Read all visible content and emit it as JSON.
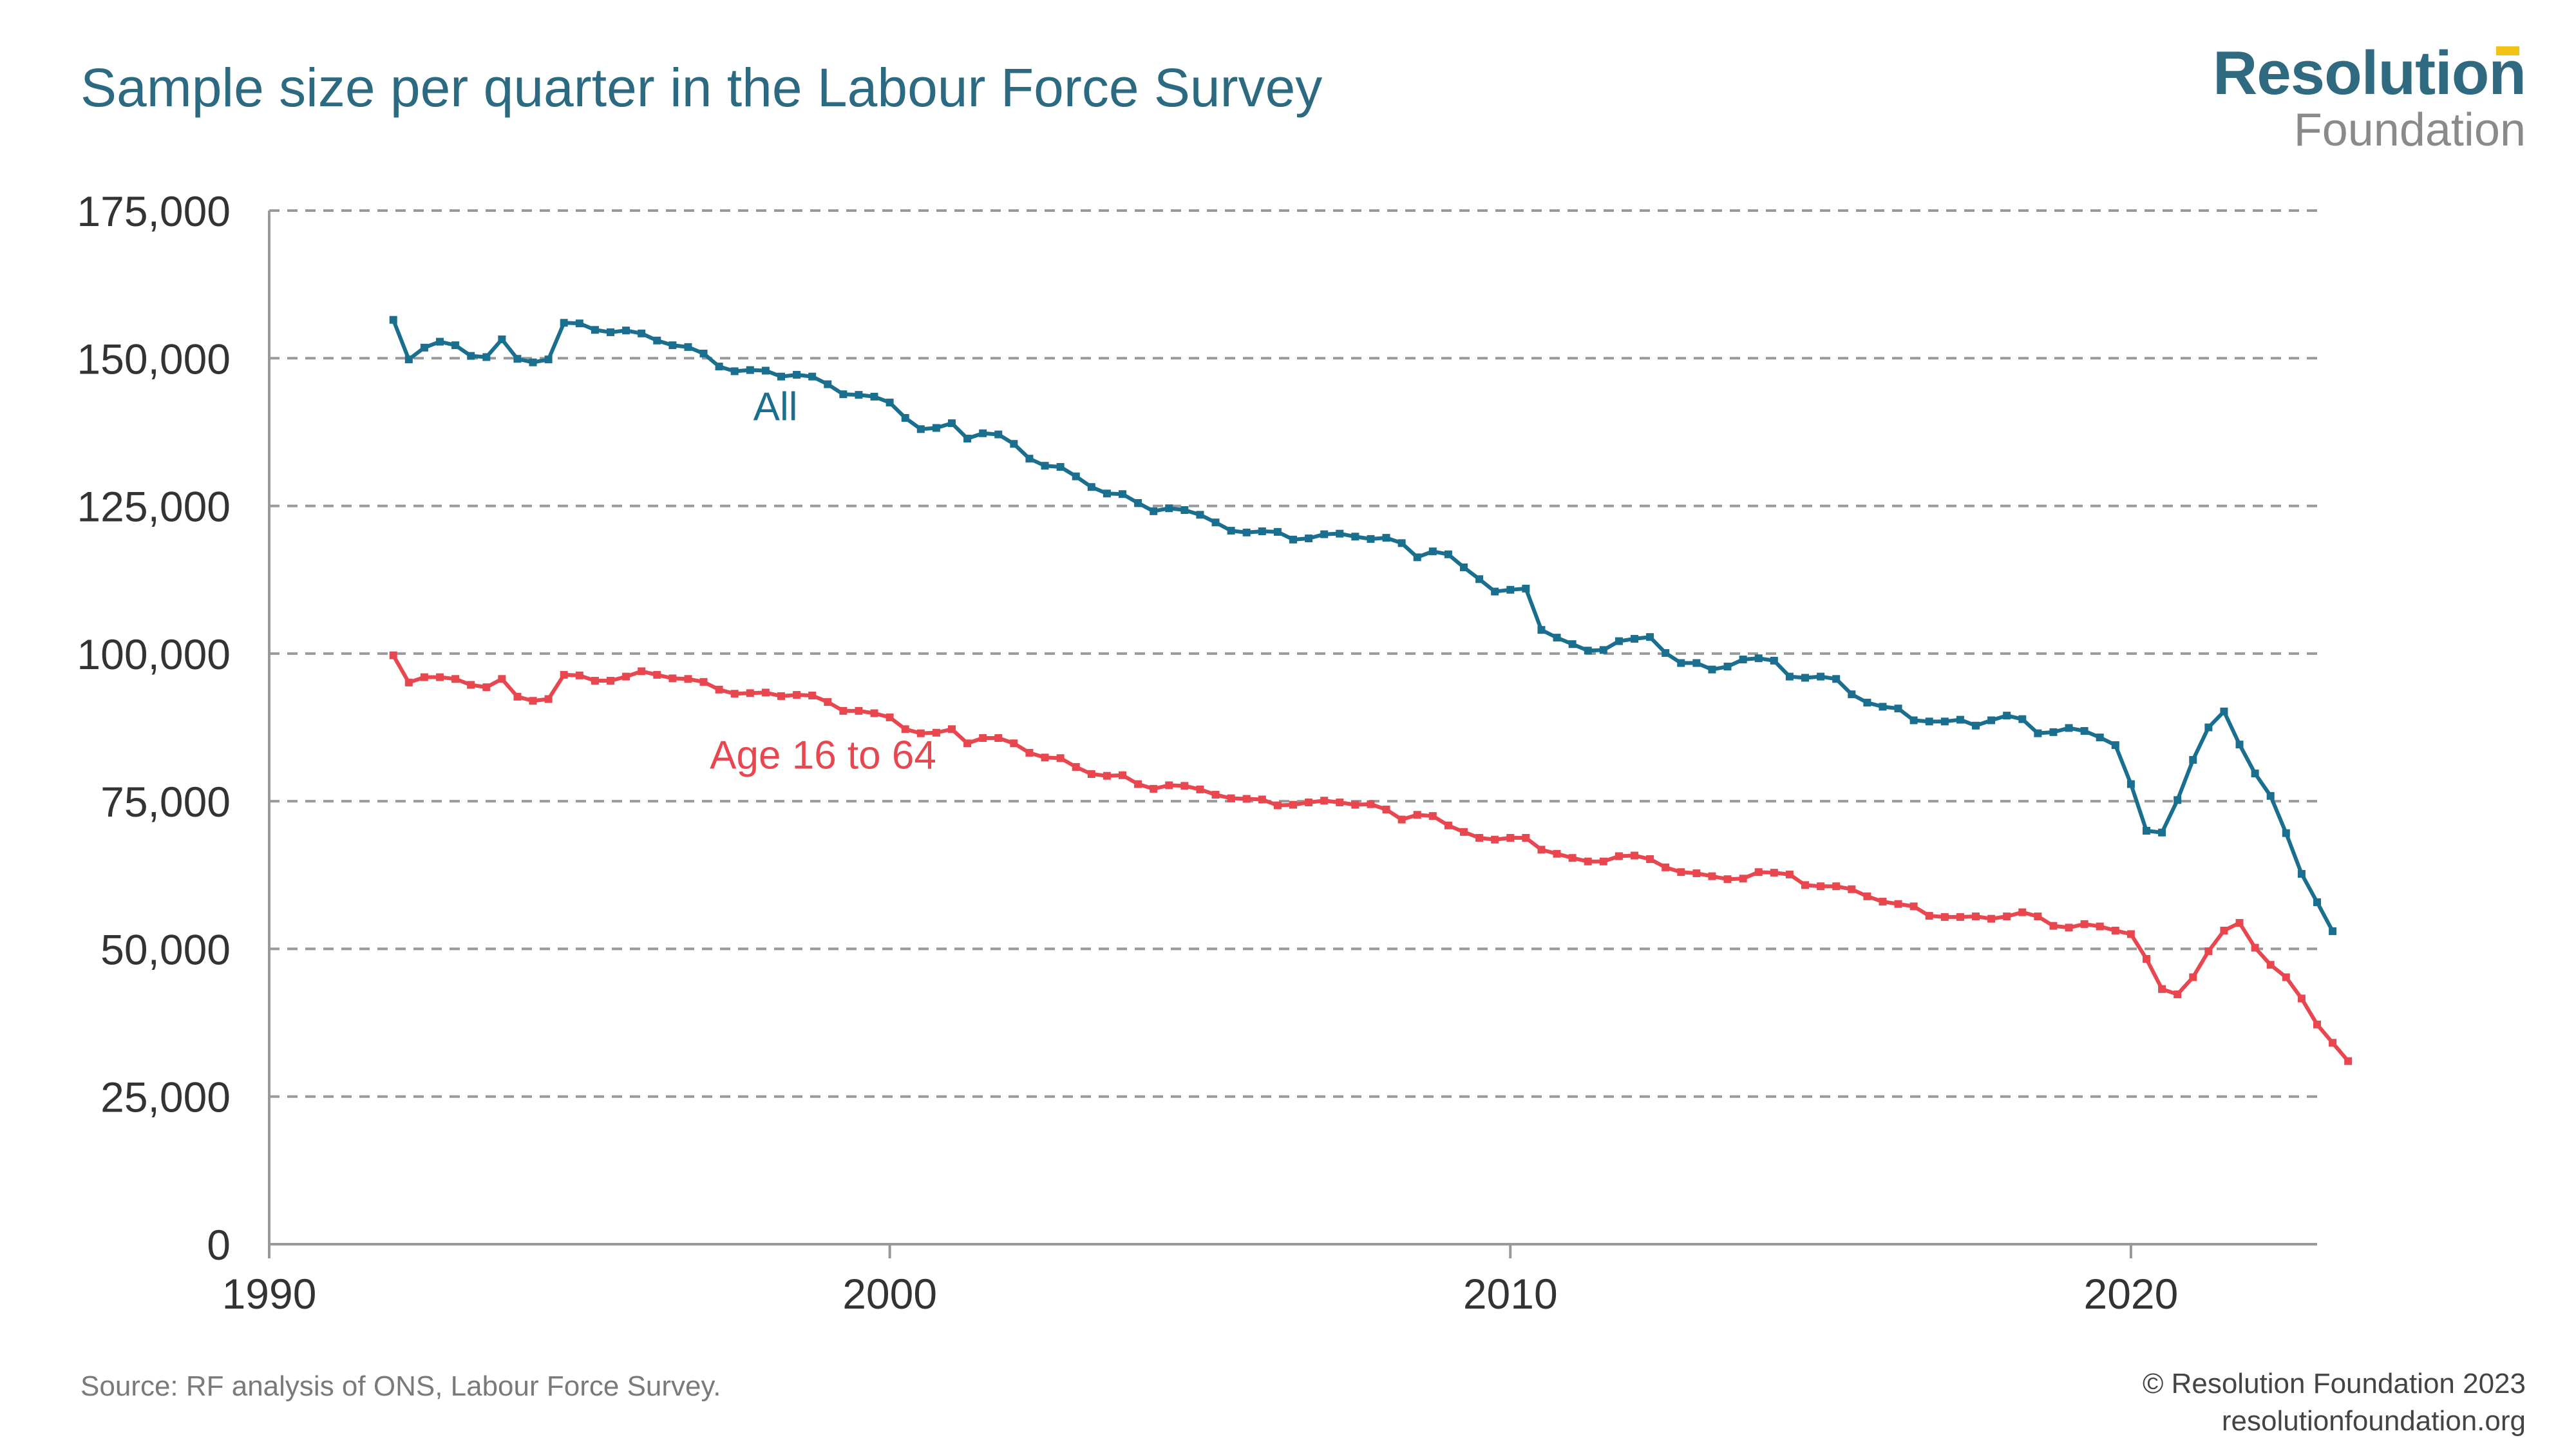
{
  "title": "Sample size per quarter in the Labour Force Survey",
  "logo": {
    "main": "Resolution",
    "sub": "Foundation"
  },
  "footer": {
    "source": "Source: RF analysis of ONS, Labour Force Survey.",
    "copyright": "© Resolution Foundation 2023",
    "website": "resolutionfoundation.org"
  },
  "colors": {
    "title": "#2b6a80",
    "all": "#1a6e8e",
    "age": "#e8474f",
    "grid": "#9a9a9a",
    "axis": "#999999"
  },
  "chart_data": {
    "type": "line",
    "title": "Sample size per quarter in the Labour Force Survey",
    "xlabel": "",
    "ylabel": "",
    "xlim": [
      1990,
      2023
    ],
    "ylim": [
      0,
      175000
    ],
    "xticks": [
      1990,
      2000,
      2010,
      2020
    ],
    "yticks": [
      0,
      25000,
      50000,
      75000,
      100000,
      125000,
      150000,
      175000
    ],
    "ytick_labels": [
      "0",
      "25,000",
      "50,000",
      "75,000",
      "100,000",
      "125,000",
      "150,000",
      "175,000"
    ],
    "grid": "horizontal dashed",
    "x_start": 1992,
    "x_step": 0.25,
    "series": [
      {
        "name": "All",
        "color": "#1a6e8e",
        "values": [
          156500,
          149800,
          151800,
          152800,
          152200,
          150400,
          150200,
          153200,
          149900,
          149300,
          149800,
          156000,
          155900,
          154800,
          154400,
          154700,
          154200,
          153000,
          152200,
          151900,
          150800,
          148600,
          147800,
          148000,
          147900,
          146900,
          147200,
          146900,
          145600,
          143900,
          143800,
          143500,
          142500,
          139900,
          138000,
          138200,
          139000,
          136400,
          137300,
          137100,
          135500,
          133000,
          131800,
          131600,
          130000,
          128200,
          127100,
          127000,
          125500,
          124100,
          124600,
          124300,
          123500,
          122200,
          120800,
          120500,
          120700,
          120600,
          119300,
          119500,
          120200,
          120300,
          119800,
          119400,
          119600,
          118700,
          116300,
          117300,
          116800,
          114600,
          112600,
          110500,
          110800,
          111000,
          104000,
          102700,
          101600,
          100500,
          100600,
          102100,
          102500,
          102800,
          100100,
          98400,
          98400,
          97300,
          97800,
          99000,
          99200,
          98800,
          96100,
          95900,
          96100,
          95700,
          93100,
          91700,
          91000,
          90700,
          88700,
          88500,
          88500,
          88800,
          87800,
          88700,
          89500,
          88900,
          86500,
          86700,
          87400,
          86900,
          85800,
          84500,
          77900,
          70000,
          69700,
          75200,
          82000,
          87500,
          90200,
          84600,
          79700,
          75900,
          69600,
          62700,
          57900,
          53000
        ]
      },
      {
        "name": "Age 16 to 64",
        "color": "#e8474f",
        "values": [
          99700,
          95100,
          96000,
          96000,
          95700,
          94700,
          94300,
          95700,
          92700,
          92000,
          92300,
          96400,
          96300,
          95400,
          95400,
          96100,
          97000,
          96400,
          95800,
          95700,
          95200,
          93900,
          93200,
          93300,
          93400,
          92800,
          93000,
          92900,
          91800,
          90300,
          90300,
          89900,
          89200,
          87200,
          86500,
          86600,
          87200,
          84800,
          85700,
          85700,
          84800,
          83200,
          82400,
          82300,
          80800,
          79600,
          79300,
          79400,
          77900,
          77100,
          77700,
          77600,
          77000,
          76100,
          75500,
          75400,
          75300,
          74300,
          74400,
          74800,
          75100,
          74800,
          74400,
          74500,
          73600,
          71900,
          72700,
          72500,
          70900,
          69800,
          68800,
          68500,
          68800,
          68800,
          66800,
          66100,
          65400,
          64800,
          64800,
          65700,
          65800,
          65200,
          63800,
          63000,
          62800,
          62300,
          61800,
          61900,
          63000,
          62900,
          62600,
          60800,
          60600,
          60600,
          60100,
          58900,
          58000,
          57600,
          57200,
          55600,
          55400,
          55400,
          55500,
          55100,
          55500,
          56200,
          55500,
          53900,
          53600,
          54200,
          53800,
          53100,
          52500,
          48300,
          43200,
          42300,
          45200,
          49600,
          53100,
          54400,
          50200,
          47300,
          45200,
          41600,
          37200,
          34100,
          31000
        ]
      }
    ],
    "annotations": [
      {
        "text": "All",
        "x": 1997.8,
        "y": 139500
      },
      {
        "text": "Age 16 to 64",
        "x": 1997.1,
        "y": 80500
      }
    ]
  }
}
